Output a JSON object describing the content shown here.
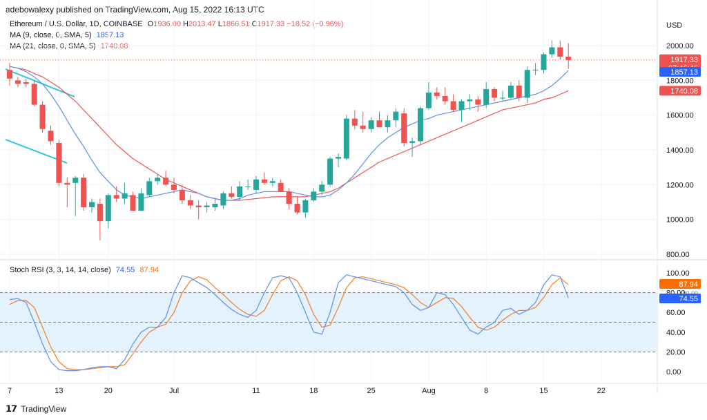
{
  "header": {
    "publisher": "adebowalexy published on TradingView.com, Aug 15, 2022 16:13 UTC"
  },
  "symbol": {
    "name": "Ethereum / U.S. Dollar, 1D, COINBASE",
    "o_label": "O",
    "o": "1936.00",
    "h_label": "H",
    "h": "2013.47",
    "l_label": "L",
    "l": "1866.51",
    "c_label": "C",
    "c": "1917.33",
    "change": "−18.52 (−0.96%)"
  },
  "ma9": {
    "label": "MA (9, close, 0, SMA, 5)",
    "value": "1857.13",
    "color": "#5b8def"
  },
  "ma21": {
    "label": "MA (21, close, 0, SMA, 5)",
    "value": "1740.08",
    "color": "#ef5350"
  },
  "currency": "USD",
  "price_axis": [
    "2000.00",
    "1800.00",
    "1600.00",
    "1400.00",
    "1200.00",
    "1000.00",
    "800.00"
  ],
  "price_tags": {
    "last": "1917.33",
    "countdown": "07:46:46",
    "ma9": "1857.13",
    "ma21": "1740.08"
  },
  "rsi": {
    "label": "Stoch RSI (3, 3, 14, 14, close)",
    "k": "74.55",
    "d": "87.94",
    "k_color": "#5b8def",
    "d_color": "#f57c1f",
    "tag_d": "87.94",
    "tag_k": "74.55",
    "tag_mid": "80.00",
    "axis": [
      "100.00",
      "80.00",
      "60.00",
      "40.00",
      "20.00",
      "0.00"
    ]
  },
  "time_axis": [
    "7",
    "13",
    "20",
    "Jul",
    "11",
    "18",
    "25",
    "Aug",
    "8",
    "15",
    "22"
  ],
  "footer": {
    "brand": "TradingView"
  },
  "colors": {
    "up": "#26a69a",
    "down": "#ef5350",
    "trendline": "#26c6da",
    "band": "#e3f2fd"
  },
  "chart_data": {
    "type": "candlestick",
    "title": "Ethereum / U.S. Dollar, 1D, COINBASE",
    "y_unit": "USD",
    "ylim": [
      780,
      2070
    ],
    "x_ticks": [
      "7",
      "13",
      "20",
      "Jul",
      "11",
      "18",
      "25",
      "Aug",
      "8",
      "15",
      "22"
    ],
    "candles": [
      {
        "o": 1860,
        "h": 1900,
        "l": 1770,
        "c": 1810
      },
      {
        "o": 1800,
        "h": 1820,
        "l": 1760,
        "c": 1780
      },
      {
        "o": 1790,
        "h": 1810,
        "l": 1760,
        "c": 1780
      },
      {
        "o": 1780,
        "h": 1800,
        "l": 1650,
        "c": 1660
      },
      {
        "o": 1660,
        "h": 1680,
        "l": 1500,
        "c": 1520
      },
      {
        "o": 1510,
        "h": 1540,
        "l": 1430,
        "c": 1450
      },
      {
        "o": 1440,
        "h": 1460,
        "l": 1190,
        "c": 1210
      },
      {
        "o": 1210,
        "h": 1240,
        "l": 1070,
        "c": 1200
      },
      {
        "o": 1210,
        "h": 1250,
        "l": 1020,
        "c": 1240
      },
      {
        "o": 1240,
        "h": 1260,
        "l": 1050,
        "c": 1070
      },
      {
        "o": 1070,
        "h": 1120,
        "l": 1040,
        "c": 1100
      },
      {
        "o": 1090,
        "h": 1120,
        "l": 880,
        "c": 990
      },
      {
        "o": 990,
        "h": 1150,
        "l": 950,
        "c": 1140
      },
      {
        "o": 1140,
        "h": 1190,
        "l": 1100,
        "c": 1120
      },
      {
        "o": 1120,
        "h": 1210,
        "l": 1090,
        "c": 1150
      },
      {
        "o": 1140,
        "h": 1160,
        "l": 1050,
        "c": 1050
      },
      {
        "o": 1050,
        "h": 1180,
        "l": 1050,
        "c": 1150
      },
      {
        "o": 1140,
        "h": 1240,
        "l": 1130,
        "c": 1220
      },
      {
        "o": 1220,
        "h": 1260,
        "l": 1200,
        "c": 1240
      },
      {
        "o": 1240,
        "h": 1280,
        "l": 1190,
        "c": 1200
      },
      {
        "o": 1200,
        "h": 1240,
        "l": 1150,
        "c": 1170
      },
      {
        "o": 1170,
        "h": 1200,
        "l": 1090,
        "c": 1110
      },
      {
        "o": 1110,
        "h": 1140,
        "l": 1060,
        "c": 1080
      },
      {
        "o": 1080,
        "h": 1110,
        "l": 1000,
        "c": 1070
      },
      {
        "o": 1070,
        "h": 1100,
        "l": 1040,
        "c": 1080
      },
      {
        "o": 1070,
        "h": 1120,
        "l": 1050,
        "c": 1090
      },
      {
        "o": 1080,
        "h": 1160,
        "l": 1060,
        "c": 1150
      },
      {
        "o": 1150,
        "h": 1190,
        "l": 1120,
        "c": 1130
      },
      {
        "o": 1130,
        "h": 1220,
        "l": 1110,
        "c": 1190
      },
      {
        "o": 1190,
        "h": 1230,
        "l": 1170,
        "c": 1190
      },
      {
        "o": 1170,
        "h": 1250,
        "l": 1150,
        "c": 1230
      },
      {
        "o": 1230,
        "h": 1270,
        "l": 1200,
        "c": 1210
      },
      {
        "o": 1210,
        "h": 1240,
        "l": 1190,
        "c": 1220
      },
      {
        "o": 1210,
        "h": 1230,
        "l": 1160,
        "c": 1160
      },
      {
        "o": 1160,
        "h": 1180,
        "l": 1060,
        "c": 1090
      },
      {
        "o": 1090,
        "h": 1130,
        "l": 1030,
        "c": 1040
      },
      {
        "o": 1040,
        "h": 1120,
        "l": 1010,
        "c": 1110
      },
      {
        "o": 1110,
        "h": 1180,
        "l": 1100,
        "c": 1160
      },
      {
        "o": 1160,
        "h": 1220,
        "l": 1140,
        "c": 1200
      },
      {
        "o": 1200,
        "h": 1360,
        "l": 1190,
        "c": 1350
      },
      {
        "o": 1350,
        "h": 1380,
        "l": 1300,
        "c": 1360
      },
      {
        "o": 1350,
        "h": 1600,
        "l": 1340,
        "c": 1580
      },
      {
        "o": 1580,
        "h": 1630,
        "l": 1520,
        "c": 1540
      },
      {
        "o": 1540,
        "h": 1620,
        "l": 1500,
        "c": 1520
      },
      {
        "o": 1520,
        "h": 1590,
        "l": 1500,
        "c": 1570
      },
      {
        "o": 1570,
        "h": 1620,
        "l": 1530,
        "c": 1530
      },
      {
        "o": 1530,
        "h": 1600,
        "l": 1500,
        "c": 1570
      },
      {
        "o": 1570,
        "h": 1640,
        "l": 1530,
        "c": 1620
      },
      {
        "o": 1610,
        "h": 1640,
        "l": 1420,
        "c": 1440
      },
      {
        "o": 1440,
        "h": 1470,
        "l": 1360,
        "c": 1450
      },
      {
        "o": 1450,
        "h": 1650,
        "l": 1430,
        "c": 1640
      },
      {
        "o": 1640,
        "h": 1790,
        "l": 1630,
        "c": 1730
      },
      {
        "o": 1730,
        "h": 1760,
        "l": 1690,
        "c": 1710
      },
      {
        "o": 1710,
        "h": 1760,
        "l": 1660,
        "c": 1680
      },
      {
        "o": 1680,
        "h": 1720,
        "l": 1620,
        "c": 1630
      },
      {
        "o": 1630,
        "h": 1690,
        "l": 1560,
        "c": 1680
      },
      {
        "o": 1680,
        "h": 1720,
        "l": 1630,
        "c": 1690
      },
      {
        "o": 1690,
        "h": 1710,
        "l": 1620,
        "c": 1660
      },
      {
        "o": 1660,
        "h": 1790,
        "l": 1640,
        "c": 1750
      },
      {
        "o": 1750,
        "h": 1760,
        "l": 1680,
        "c": 1700
      },
      {
        "o": 1700,
        "h": 1740,
        "l": 1680,
        "c": 1700
      },
      {
        "o": 1700,
        "h": 1790,
        "l": 1690,
        "c": 1770
      },
      {
        "o": 1770,
        "h": 1800,
        "l": 1680,
        "c": 1700
      },
      {
        "o": 1700,
        "h": 1880,
        "l": 1670,
        "c": 1860
      },
      {
        "o": 1860,
        "h": 1900,
        "l": 1830,
        "c": 1860
      },
      {
        "o": 1860,
        "h": 1960,
        "l": 1840,
        "c": 1950
      },
      {
        "o": 1950,
        "h": 2030,
        "l": 1930,
        "c": 1990
      },
      {
        "o": 1990,
        "h": 2030,
        "l": 1920,
        "c": 1936
      },
      {
        "o": 1936,
        "h": 2013.47,
        "l": 1866.51,
        "c": 1917.33
      }
    ],
    "series": [
      {
        "name": "MA (9, close, 0, SMA, 5)",
        "values": [
          1880,
          1870,
          1850,
          1820,
          1780,
          1720,
          1650,
          1570,
          1490,
          1420,
          1340,
          1270,
          1220,
          1170,
          1140,
          1130,
          1120,
          1130,
          1140,
          1150,
          1160,
          1170,
          1160,
          1150,
          1130,
          1120,
          1110,
          1110,
          1120,
          1140,
          1150,
          1160,
          1160,
          1160,
          1160,
          1150,
          1140,
          1130,
          1130,
          1140,
          1170,
          1210,
          1260,
          1320,
          1380,
          1430,
          1470,
          1500,
          1530,
          1550,
          1570,
          1580,
          1600,
          1610,
          1620,
          1630,
          1640,
          1650,
          1660,
          1670,
          1680,
          1690,
          1700,
          1710,
          1720,
          1740,
          1770,
          1810,
          1857.13
        ]
      },
      {
        "name": "MA (21, close, 0, SMA, 5)",
        "values": [
          1880,
          1870,
          1860,
          1840,
          1820,
          1790,
          1760,
          1720,
          1680,
          1630,
          1580,
          1530,
          1480,
          1430,
          1390,
          1350,
          1320,
          1290,
          1260,
          1230,
          1210,
          1190,
          1170,
          1150,
          1130,
          1120,
          1110,
          1110,
          1110,
          1115,
          1120,
          1125,
          1130,
          1130,
          1130,
          1130,
          1130,
          1140,
          1150,
          1160,
          1180,
          1210,
          1240,
          1270,
          1300,
          1330,
          1350,
          1370,
          1390,
          1410,
          1430,
          1450,
          1470,
          1490,
          1510,
          1530,
          1550,
          1570,
          1590,
          1610,
          1630,
          1640,
          1650,
          1660,
          1670,
          1690,
          1700,
          1720,
          1740.08
        ]
      },
      {
        "name": "Stoch RSI %K",
        "values": [
          73,
          74,
          70,
          50,
          28,
          10,
          2,
          1,
          1,
          2,
          4,
          5,
          5,
          3,
          12,
          28,
          40,
          45,
          45,
          55,
          80,
          97,
          95,
          90,
          85,
          78,
          70,
          63,
          58,
          55,
          62,
          80,
          95,
          97,
          95,
          80,
          60,
          40,
          38,
          60,
          90,
          98,
          96,
          94,
          92,
          90,
          88,
          86,
          80,
          68,
          62,
          65,
          80,
          78,
          68,
          55,
          42,
          38,
          45,
          50,
          62,
          64,
          58,
          62,
          70,
          88,
          98,
          96,
          74.55
        ]
      },
      {
        "name": "Stoch RSI %D",
        "values": [
          68,
          72,
          72,
          65,
          45,
          25,
          10,
          3,
          2,
          2,
          3,
          4,
          5,
          5,
          7,
          18,
          30,
          40,
          45,
          48,
          60,
          80,
          92,
          96,
          93,
          85,
          78,
          70,
          63,
          58,
          56,
          62,
          78,
          92,
          96,
          92,
          78,
          58,
          45,
          47,
          65,
          85,
          95,
          96,
          94,
          92,
          90,
          88,
          85,
          78,
          70,
          65,
          70,
          75,
          74,
          66,
          55,
          45,
          42,
          45,
          52,
          58,
          62,
          62,
          65,
          75,
          88,
          95,
          87.94
        ]
      }
    ]
  }
}
